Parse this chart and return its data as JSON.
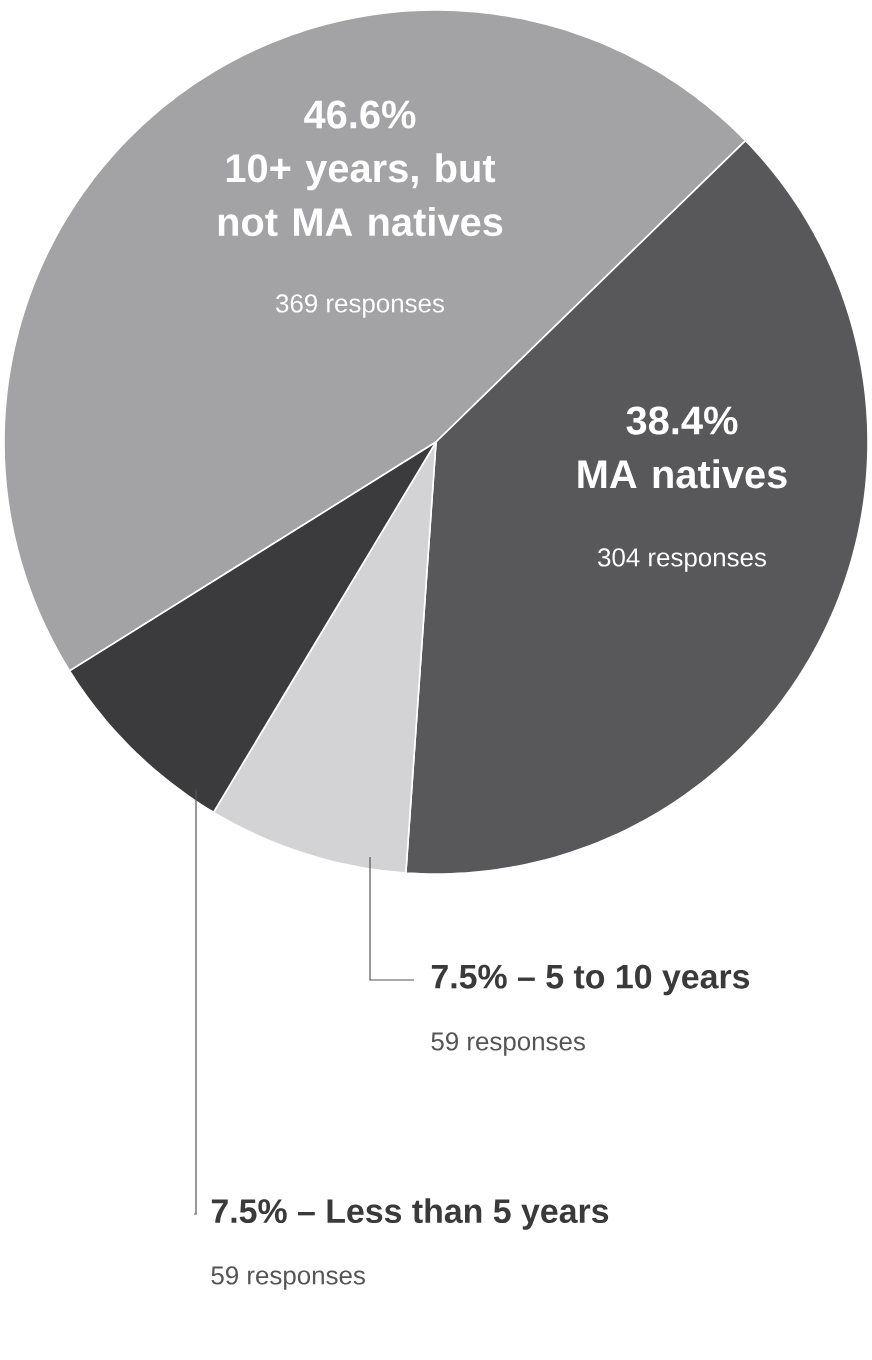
{
  "chart_data": {
    "type": "pie",
    "categories": [
      "10+ years, but not MA natives",
      "MA natives",
      "5 to 10 years",
      "Less than 5 years"
    ],
    "values": [
      46.6,
      38.4,
      7.5,
      7.5
    ],
    "value_labels": [
      "46.6%",
      "38.4%",
      "7.5% –",
      "7.5% –"
    ],
    "colors": [
      "#a3a3a5",
      "#58585b",
      "#d3d3d5",
      "#3b3b3d"
    ],
    "annotations": [
      "369 responses",
      "304 responses",
      "59 responses",
      "59 responses"
    ]
  }
}
